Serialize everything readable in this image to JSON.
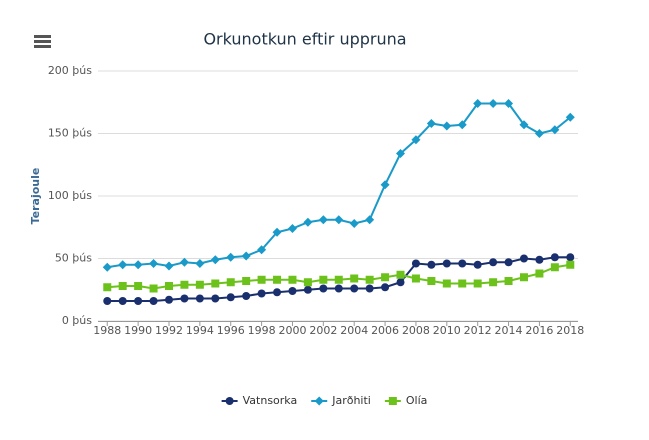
{
  "chart_data": {
    "type": "line",
    "title": "Orkunotkun eftir uppruna",
    "y_label": "Terajoule",
    "x": [
      1988,
      1989,
      1990,
      1991,
      1992,
      1993,
      1994,
      1995,
      1996,
      1997,
      1998,
      1999,
      2000,
      2001,
      2002,
      2003,
      2004,
      2005,
      2006,
      2007,
      2008,
      2009,
      2010,
      2011,
      2012,
      2013,
      2014,
      2015,
      2016,
      2017,
      2018
    ],
    "xlim": [
      1987.4,
      2018.5
    ],
    "xticks": [
      1988,
      1990,
      1992,
      1994,
      1996,
      1998,
      2000,
      2002,
      2004,
      2006,
      2008,
      2010,
      2012,
      2014,
      2016,
      2018
    ],
    "ylim": [
      0,
      200000
    ],
    "yticks": [
      {
        "value": 0,
        "label": "0 þús"
      },
      {
        "value": 50000,
        "label": "50 þús"
      },
      {
        "value": 100000,
        "label": "100 þús"
      },
      {
        "value": 150000,
        "label": "150 þús"
      },
      {
        "value": 200000,
        "label": "200 þús"
      }
    ],
    "grid": true,
    "legend": "bottom",
    "series": [
      {
        "name": "Vatnsorka",
        "color": "#1a2f6e",
        "symbol": "circle",
        "values": [
          16000,
          16000,
          16000,
          16000,
          17000,
          18000,
          18000,
          18000,
          19000,
          20000,
          22000,
          23000,
          24000,
          25000,
          26000,
          26000,
          26000,
          26000,
          27000,
          31000,
          46000,
          45000,
          46000,
          46000,
          45000,
          47000,
          47000,
          50000,
          49000,
          51000,
          51000
        ]
      },
      {
        "name": "Jarðhiti",
        "color": "#1a9ac9",
        "symbol": "diamond",
        "values": [
          43000,
          45000,
          45000,
          46000,
          44000,
          47000,
          46000,
          49000,
          51000,
          52000,
          57000,
          71000,
          74000,
          79000,
          81000,
          81000,
          78000,
          81000,
          109000,
          134000,
          145000,
          158000,
          156000,
          157000,
          174000,
          174000,
          174000,
          157000,
          150000,
          153000,
          163000
        ]
      },
      {
        "name": "Olía",
        "color": "#6cc21a",
        "symbol": "square",
        "values": [
          27000,
          28000,
          28000,
          26000,
          28000,
          29000,
          29000,
          30000,
          31000,
          32000,
          33000,
          33000,
          33000,
          31000,
          33000,
          33000,
          34000,
          33000,
          35000,
          37000,
          34000,
          32000,
          30000,
          30000,
          30000,
          31000,
          32000,
          35000,
          38000,
          43000,
          45000
        ]
      }
    ]
  }
}
